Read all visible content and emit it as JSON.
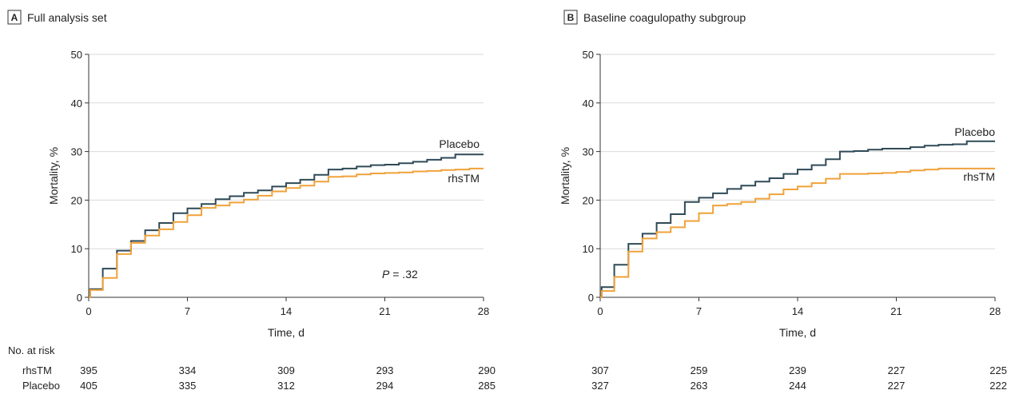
{
  "colors": {
    "placebo": "#2f4a57",
    "rhstm": "#f0a23a",
    "grid": "#d9d9d9",
    "axis": "#333333"
  },
  "chart_data": [
    {
      "type": "line",
      "panel_letter": "A",
      "title": "Full analysis set",
      "xlabel": "Time, d",
      "ylabel": "Mortality, %",
      "xlim": [
        0,
        28
      ],
      "ylim": [
        0,
        50
      ],
      "xticks": [
        0,
        7,
        14,
        21,
        28
      ],
      "yticks": [
        0,
        10,
        20,
        30,
        40,
        50
      ],
      "grid": true,
      "step": true,
      "annotation": {
        "italic": "P",
        "text": " = .32"
      },
      "series": [
        {
          "name": "Placebo",
          "x": [
            0,
            0.1,
            1,
            2,
            3,
            4,
            5,
            6,
            7,
            8,
            9,
            10,
            11,
            12,
            13,
            14,
            15,
            16,
            17,
            18,
            19,
            20,
            21,
            22,
            23,
            24,
            25,
            26,
            28
          ],
          "y": [
            0,
            1.7,
            5.9,
            9.6,
            11.6,
            13.8,
            15.3,
            17.3,
            18.3,
            19.2,
            20.2,
            20.8,
            21.5,
            22.0,
            22.8,
            23.5,
            24.2,
            25.2,
            26.3,
            26.5,
            26.9,
            27.2,
            27.3,
            27.6,
            27.9,
            28.3,
            28.7,
            29.4,
            29.4
          ]
        },
        {
          "name": "rhsTM",
          "x": [
            0,
            0.1,
            1,
            2,
            3,
            4,
            5,
            6,
            7,
            8,
            9,
            10,
            11,
            12,
            13,
            14,
            15,
            16,
            17,
            18,
            19,
            20,
            21,
            22,
            23,
            24,
            25,
            26,
            27,
            28
          ],
          "y": [
            0,
            1.5,
            4.0,
            8.9,
            11.2,
            12.7,
            14.0,
            15.5,
            16.9,
            18.4,
            18.9,
            19.5,
            20.1,
            20.9,
            21.8,
            22.5,
            23.0,
            23.8,
            24.8,
            24.9,
            25.3,
            25.5,
            25.6,
            25.7,
            25.9,
            26.0,
            26.2,
            26.3,
            26.5,
            26.5
          ]
        }
      ],
      "at_risk": {
        "header": "No. at risk",
        "rows": [
          {
            "label": "rhsTM",
            "values": [
              "395",
              "334",
              "309",
              "293",
              "290"
            ]
          },
          {
            "label": "Placebo",
            "values": [
              "405",
              "335",
              "312",
              "294",
              "285"
            ]
          }
        ]
      }
    },
    {
      "type": "line",
      "panel_letter": "B",
      "title": "Baseline coagulopathy subgroup",
      "xlabel": "Time, d",
      "ylabel": "Mortality, %",
      "xlim": [
        0,
        28
      ],
      "ylim": [
        0,
        50
      ],
      "xticks": [
        0,
        7,
        14,
        21,
        28
      ],
      "yticks": [
        0,
        10,
        20,
        30,
        40,
        50
      ],
      "grid": true,
      "step": true,
      "series": [
        {
          "name": "Placebo",
          "x": [
            0,
            0.1,
            1,
            2,
            3,
            4,
            5,
            6,
            7,
            8,
            9,
            10,
            11,
            12,
            13,
            14,
            15,
            16,
            17,
            18,
            19,
            20,
            21,
            22,
            23,
            24,
            25,
            26,
            28
          ],
          "y": [
            0,
            2.1,
            6.7,
            11.0,
            13.1,
            15.3,
            17.1,
            19.6,
            20.5,
            21.4,
            22.3,
            23.0,
            23.8,
            24.5,
            25.4,
            26.3,
            27.2,
            28.4,
            30.0,
            30.1,
            30.4,
            30.6,
            30.6,
            30.9,
            31.2,
            31.4,
            31.5,
            32.1,
            32.1
          ]
        },
        {
          "name": "rhsTM",
          "x": [
            0,
            0.1,
            1,
            2,
            3,
            4,
            5,
            6,
            7,
            8,
            9,
            10,
            11,
            12,
            13,
            14,
            15,
            16,
            17,
            18,
            19,
            20,
            21,
            22,
            23,
            24,
            28
          ],
          "y": [
            0,
            1.3,
            4.2,
            9.4,
            12.1,
            13.4,
            14.4,
            15.7,
            17.3,
            18.9,
            19.2,
            19.6,
            20.3,
            21.2,
            22.2,
            22.8,
            23.5,
            24.4,
            25.4,
            25.4,
            25.5,
            25.6,
            25.8,
            26.1,
            26.3,
            26.5,
            26.5
          ]
        }
      ],
      "at_risk": {
        "rows": [
          {
            "label": "rhsTM",
            "values": [
              "307",
              "259",
              "239",
              "227",
              "225"
            ]
          },
          {
            "label": "Placebo",
            "values": [
              "327",
              "263",
              "244",
              "227",
              "222"
            ]
          }
        ]
      }
    }
  ]
}
